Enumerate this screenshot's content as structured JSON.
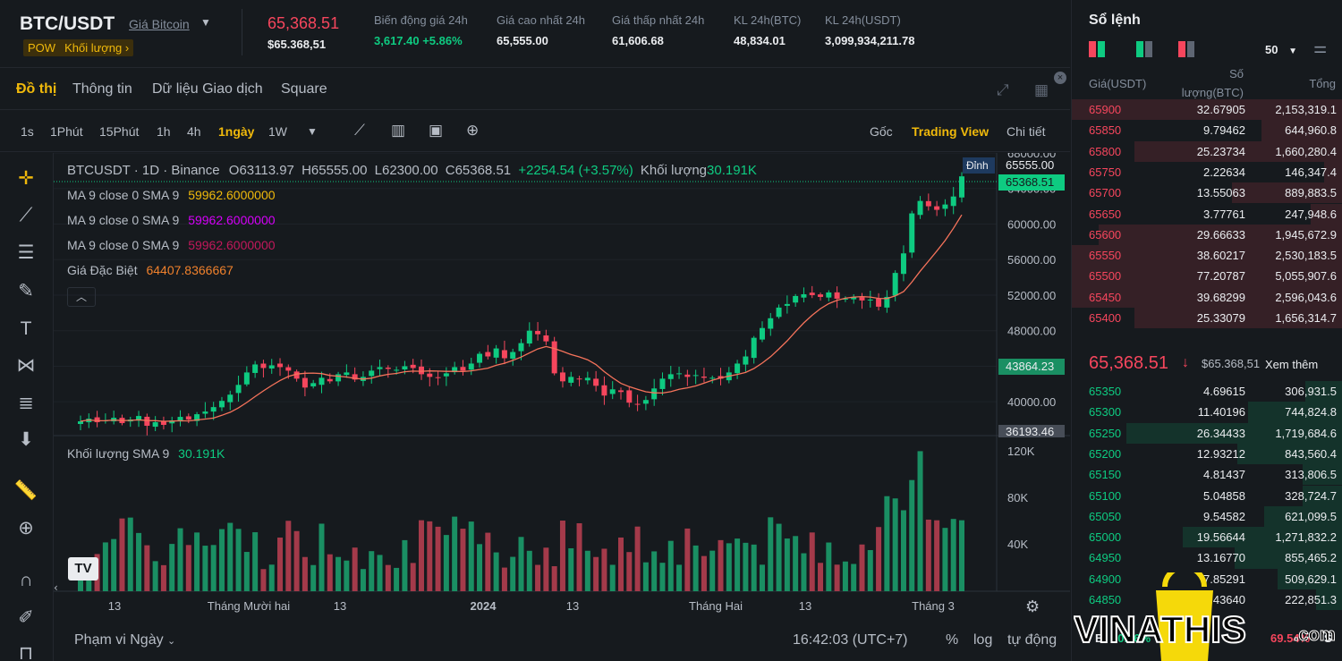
{
  "ticker": {
    "symbol": "BTC/USDT",
    "name_link": "Giá Bitcoin",
    "tag_pow": "POW",
    "tag_volume": "Khối lượng ›",
    "last_price": "65,368.51",
    "last_price_usd": "$65.368,51",
    "stats": [
      {
        "label": "Biến động giá 24h",
        "value": "3,617.40 +5.86%",
        "tone": "green"
      },
      {
        "label": "Giá cao nhất 24h",
        "value": "65,555.00",
        "tone": "normal"
      },
      {
        "label": "Giá thấp nhất 24h",
        "value": "61,606.68",
        "tone": "normal"
      },
      {
        "label": "KL 24h(BTC)",
        "value": "48,834.01",
        "tone": "normal"
      },
      {
        "label": "KL 24h(USDT)",
        "value": "3,099,934,211.78",
        "tone": "normal"
      }
    ]
  },
  "tabs": [
    "Đồ thị",
    "Thông tin",
    "Dữ liệu Giao dịch",
    "Square"
  ],
  "toolbar": {
    "timeframes": [
      "1s",
      "1Phút",
      "15Phút",
      "1h",
      "4h",
      "1ngày",
      "1W"
    ],
    "active_timeframe": "1ngày",
    "views": [
      "Gốc",
      "Trading View",
      "Chi tiết"
    ],
    "active_view": "Trading View"
  },
  "legend": {
    "title": "BTCUSDT · 1D · Binance",
    "ohlc_open": "O63113.97",
    "ohlc_high": "H65555.00",
    "ohlc_low": "L62300.00",
    "ohlc_close": "C65368.51",
    "change": "+2254.54 (+3.57%)",
    "volume_label": "Khối lượng",
    "volume_value": "30.191K",
    "ma_lines": [
      {
        "label": "MA 9 close 0 SMA 9",
        "value": "59962.6000000",
        "color": "#f0b90b"
      },
      {
        "label": "MA 9 close 0 SMA 9",
        "value": "59962.6000000",
        "color": "#d500f9"
      },
      {
        "label": "MA 9 close 0 SMA 9",
        "value": "59962.6000000",
        "color": "#c2185b"
      }
    ],
    "special_label": "Giá Đặc Biệt",
    "special_value": "64407.8366667",
    "special_color": "#f0812c",
    "vol_sma_label": "Khối lượng SMA 9",
    "vol_sma_value": "30.191K"
  },
  "price_axis": {
    "ticks": [
      "68000.00",
      "64000.00",
      "60000.00",
      "56000.00",
      "52000.00",
      "48000.00",
      "44000.00",
      "40000.00"
    ],
    "high_tag": "Đỉnh",
    "high_value": "65555.00",
    "last_value": "65368.51",
    "cursor_value": "43864.23",
    "low_value": "36193.46"
  },
  "volume_axis": {
    "ticks": [
      "120K",
      "80K",
      "40K"
    ]
  },
  "time_axis": {
    "labels": [
      "13",
      "Tháng Mười hai",
      "13",
      "2024",
      "13",
      "Tháng Hai",
      "13",
      "Tháng 3"
    ]
  },
  "footer": {
    "range": "Phạm vi Ngày",
    "time": "16:42:03 (UTC+7)",
    "pct": "%",
    "log": "log",
    "auto": "tự động"
  },
  "chart_data": {
    "type": "candlestick",
    "title": "BTCUSDT · 1D · Binance",
    "y_range": [
      36193.46,
      68000
    ],
    "closes": [
      37800,
      38100,
      37700,
      37900,
      38200,
      37600,
      38000,
      38400,
      37300,
      37700,
      37400,
      37900,
      38300,
      38000,
      38600,
      38900,
      39400,
      40100,
      40800,
      41900,
      43300,
      44200,
      43800,
      44100,
      43900,
      43500,
      42600,
      41600,
      42100,
      42700,
      42300,
      43100,
      43300,
      42500,
      42800,
      43500,
      43900,
      43700,
      43600,
      44000,
      43800,
      43100,
      42800,
      42700,
      43200,
      43900,
      43500,
      44300,
      45400,
      45100,
      46000,
      44900,
      45600,
      46600,
      48000,
      47600,
      46800,
      43200,
      42300,
      42800,
      42600,
      42700,
      41800,
      40700,
      41400,
      41100,
      39900,
      39700,
      40200,
      41500,
      42600,
      43100,
      43200,
      42800,
      43000,
      42700,
      42700,
      42600,
      43300,
      44300,
      45100,
      47200,
      48300,
      49400,
      50600,
      51000,
      51900,
      52100,
      52000,
      51800,
      52300,
      51600,
      51600,
      51800,
      51400,
      51500,
      50700,
      51800,
      54500,
      56700,
      61200,
      62600,
      62000,
      61600,
      62200,
      63100,
      65368
    ],
    "volume_range_k": [
      0,
      120
    ]
  },
  "orderbook": {
    "title": "Sổ lệnh",
    "depth": "50",
    "headers": {
      "price": "Giá(USDT)",
      "qty": "Số lượng(BTC)",
      "total": "Tổng"
    },
    "asks": [
      {
        "price": "65900",
        "qty": "32.67905",
        "total": "2,153,319.1",
        "depth": 1.0
      },
      {
        "price": "65850",
        "qty": "9.79462",
        "total": "644,960.8",
        "depth": 0.3
      },
      {
        "price": "65800",
        "qty": "25.23734",
        "total": "1,660,280.4",
        "depth": 0.77
      },
      {
        "price": "65750",
        "qty": "2.22634",
        "total": "146,347.4",
        "depth": 0.07
      },
      {
        "price": "65700",
        "qty": "13.55063",
        "total": "889,883.5",
        "depth": 0.41
      },
      {
        "price": "65650",
        "qty": "3.77761",
        "total": "247,948.6",
        "depth": 0.12
      },
      {
        "price": "65600",
        "qty": "29.66633",
        "total": "1,945,672.9",
        "depth": 0.9
      },
      {
        "price": "65550",
        "qty": "38.60217",
        "total": "2,530,183.5",
        "depth": 1.0
      },
      {
        "price": "65500",
        "qty": "77.20787",
        "total": "5,055,907.6",
        "depth": 1.0
      },
      {
        "price": "65450",
        "qty": "39.68299",
        "total": "2,596,043.6",
        "depth": 1.0
      },
      {
        "price": "65400",
        "qty": "25.33079",
        "total": "1,656,314.7",
        "depth": 0.77
      }
    ],
    "mid": {
      "price": "65,368.51",
      "arrow": "↓",
      "usd": "$65.368,51",
      "more": "Xem thêm"
    },
    "bids": [
      {
        "price": "65350",
        "qty": "4.69615",
        "total": "306,931.5",
        "depth": 0.14
      },
      {
        "price": "65300",
        "qty": "11.40196",
        "total": "744,824.8",
        "depth": 0.35
      },
      {
        "price": "65250",
        "qty": "26.34433",
        "total": "1,719,684.6",
        "depth": 0.8
      },
      {
        "price": "65200",
        "qty": "12.93212",
        "total": "843,560.4",
        "depth": 0.39
      },
      {
        "price": "65150",
        "qty": "4.81437",
        "total": "313,806.5",
        "depth": 0.15
      },
      {
        "price": "65100",
        "qty": "5.04858",
        "total": "328,724.7",
        "depth": 0.15
      },
      {
        "price": "65050",
        "qty": "9.54582",
        "total": "621,099.5",
        "depth": 0.29
      },
      {
        "price": "65000",
        "qty": "19.56644",
        "total": "1,271,832.2",
        "depth": 0.59
      },
      {
        "price": "64950",
        "qty": "13.16770",
        "total": "855,465.2",
        "depth": 0.4
      },
      {
        "price": "64900",
        "qty": "7.85291",
        "total": "509,629.1",
        "depth": 0.24
      },
      {
        "price": "64850",
        "qty": "3.43640",
        "total": "222,851.3",
        "depth": 0.1
      }
    ],
    "ratio_b": "B",
    "ratio_b_val": "30.46%",
    "ratio_s_val": "69.54%",
    "ratio_s": "S"
  },
  "watermark": {
    "text": "VINATHIS",
    "suffix": ".com"
  },
  "colors": {
    "up": "#0ecb81",
    "down": "#f6465d",
    "accent": "#f0b90b",
    "ma": "#f6735b"
  }
}
